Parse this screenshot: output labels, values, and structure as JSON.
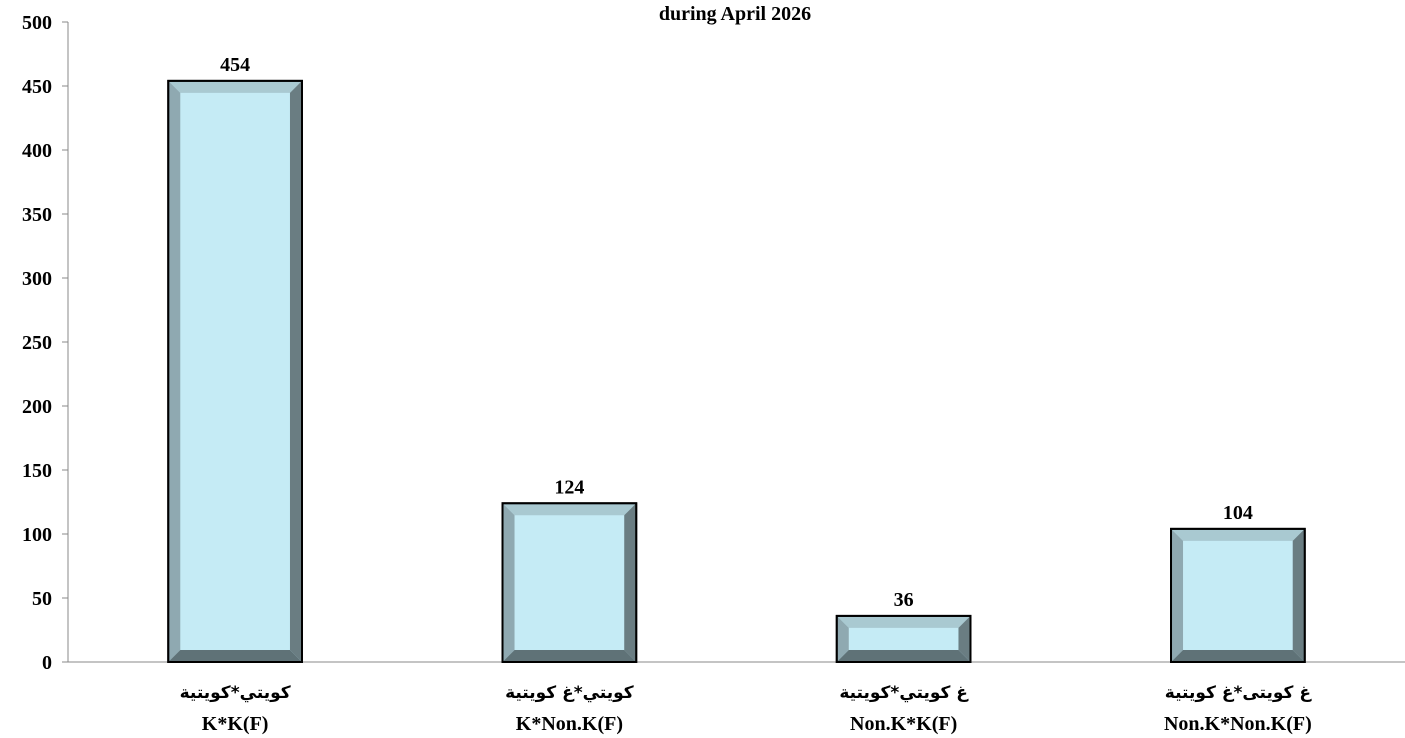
{
  "chart_data": {
    "type": "bar",
    "title": "during April 2026",
    "categories": [
      [
        "كويتي*كويتية",
        "K*K(F)"
      ],
      [
        "كويتي*غ كويتية",
        "K*Non.K(F)"
      ],
      [
        "غ كويتي*كويتية",
        "Non.K*K(F)"
      ],
      [
        "غ كويتى*غ كويتية",
        "Non.K*Non.K(F)"
      ]
    ],
    "values": [
      454,
      124,
      36,
      104
    ],
    "color": "#c5ebf5",
    "ylim": [
      0,
      500
    ],
    "yticks": [
      0,
      50,
      100,
      150,
      200,
      250,
      300,
      350,
      400,
      450,
      500
    ],
    "grid": false
  }
}
